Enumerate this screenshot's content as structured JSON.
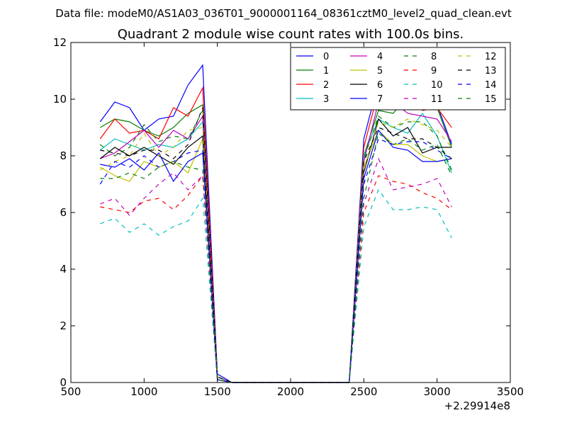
{
  "suptitle": "Data file: modeM0/AS1A03_036T01_9000001164_08361cztM0_level2_quad_clean.evt",
  "chart_data": {
    "type": "line",
    "title": "Quadrant 2 module wise count rates with 100.0s bins.",
    "xlabel": "",
    "ylabel": "",
    "x_offset_label": "+2.29914e8",
    "xlim": [
      500,
      3500
    ],
    "ylim": [
      0,
      12
    ],
    "xticks": [
      500,
      1000,
      1500,
      2000,
      2500,
      3000,
      3500
    ],
    "yticks": [
      0,
      2,
      4,
      6,
      8,
      10,
      12
    ],
    "grid": false,
    "legend_position": "top-right",
    "legend_columns": 4,
    "x": [
      700,
      800,
      900,
      1000,
      1100,
      1200,
      1300,
      1400,
      1500,
      1600,
      1700,
      1800,
      1900,
      2000,
      2100,
      2200,
      2300,
      2400,
      2500,
      2600,
      2700,
      2800,
      2900,
      3000,
      3100
    ],
    "series": [
      {
        "name": "0",
        "color": "#0000ff",
        "dash": "solid",
        "values": [
          9.2,
          9.9,
          9.7,
          8.9,
          9.3,
          9.4,
          10.5,
          11.2,
          0.3,
          0,
          0,
          0,
          0,
          0,
          0,
          0,
          0,
          0,
          8.6,
          10.6,
          10.4,
          10.3,
          10.0,
          9.8,
          8.4
        ]
      },
      {
        "name": "1",
        "color": "#008000",
        "dash": "solid",
        "values": [
          9.0,
          9.3,
          9.2,
          8.9,
          8.7,
          9.0,
          9.5,
          9.8,
          0.2,
          0,
          0,
          0,
          0,
          0,
          0,
          0,
          0,
          0,
          8.0,
          9.6,
          9.5,
          10.1,
          10.0,
          9.7,
          8.3
        ]
      },
      {
        "name": "2",
        "color": "#ff0000",
        "dash": "solid",
        "values": [
          8.6,
          9.3,
          8.8,
          8.9,
          8.6,
          9.7,
          9.4,
          10.4,
          0.2,
          0,
          0,
          0,
          0,
          0,
          0,
          0,
          0,
          0,
          8.3,
          10.3,
          10.2,
          10.2,
          9.6,
          9.7,
          9.0
        ]
      },
      {
        "name": "3",
        "color": "#00bfbf",
        "dash": "solid",
        "values": [
          8.2,
          8.6,
          8.4,
          8.2,
          8.4,
          8.3,
          8.6,
          9.2,
          0.2,
          0,
          0,
          0,
          0,
          0,
          0,
          0,
          0,
          0,
          8.0,
          9.3,
          9.0,
          8.8,
          9.5,
          8.7,
          7.4
        ]
      },
      {
        "name": "4",
        "color": "#bf00bf",
        "dash": "solid",
        "values": [
          7.9,
          8.1,
          8.5,
          8.9,
          8.3,
          8.9,
          8.6,
          9.4,
          0.2,
          0,
          0,
          0,
          0,
          0,
          0,
          0,
          0,
          0,
          7.8,
          9.9,
          9.9,
          9.5,
          9.4,
          9.3,
          8.5
        ]
      },
      {
        "name": "5",
        "color": "#bfbf00",
        "dash": "solid",
        "values": [
          7.6,
          7.3,
          7.1,
          7.8,
          7.6,
          7.8,
          7.4,
          8.6,
          0.1,
          0,
          0,
          0,
          0,
          0,
          0,
          0,
          0,
          0,
          7.6,
          8.9,
          8.4,
          8.4,
          8.0,
          7.8,
          7.9
        ]
      },
      {
        "name": "6",
        "color": "#000000",
        "dash": "solid",
        "values": [
          7.9,
          8.3,
          8.0,
          8.3,
          8.0,
          7.7,
          8.3,
          8.7,
          0.1,
          0,
          0,
          0,
          0,
          0,
          0,
          0,
          0,
          0,
          7.4,
          9.3,
          8.7,
          9.0,
          8.1,
          8.3,
          8.3
        ]
      },
      {
        "name": "7",
        "color": "#0000ff",
        "dash": "solid",
        "values": [
          7.7,
          7.6,
          7.9,
          7.5,
          8.1,
          7.1,
          7.8,
          8.1,
          0.1,
          0,
          0,
          0,
          0,
          0,
          0,
          0,
          0,
          0,
          7.2,
          8.9,
          8.3,
          8.2,
          7.8,
          7.8,
          7.9
        ]
      },
      {
        "name": "8",
        "color": "#008000",
        "dash": "dashed",
        "values": [
          8.4,
          8.0,
          8.3,
          9.1,
          8.5,
          8.7,
          8.6,
          9.6,
          0.2,
          0,
          0,
          0,
          0,
          0,
          0,
          0,
          0,
          0,
          7.9,
          9.4,
          9.0,
          9.2,
          9.2,
          8.7,
          7.5
        ]
      },
      {
        "name": "9",
        "color": "#ff0000",
        "dash": "dashed",
        "values": [
          6.2,
          6.1,
          6.0,
          6.4,
          6.5,
          6.1,
          6.6,
          7.3,
          0.1,
          0,
          0,
          0,
          0,
          0,
          0,
          0,
          0,
          0,
          6.0,
          7.3,
          7.1,
          7.0,
          6.7,
          6.5,
          6.1
        ]
      },
      {
        "name": "10",
        "color": "#00bfbf",
        "dash": "dashed",
        "values": [
          5.6,
          5.8,
          5.3,
          5.6,
          5.2,
          5.5,
          5.7,
          6.5,
          0.1,
          0,
          0,
          0,
          0,
          0,
          0,
          0,
          0,
          0,
          5.5,
          6.8,
          6.1,
          6.1,
          6.2,
          6.1,
          5.1
        ]
      },
      {
        "name": "11",
        "color": "#bf00bf",
        "dash": "dashed",
        "values": [
          6.3,
          6.5,
          5.9,
          6.5,
          7.0,
          7.4,
          6.8,
          7.3,
          0.1,
          0,
          0,
          0,
          0,
          0,
          0,
          0,
          0,
          0,
          6.3,
          7.9,
          6.8,
          6.9,
          7.0,
          7.2,
          6.2
        ]
      },
      {
        "name": "12",
        "color": "#bfbf00",
        "dash": "dashed",
        "values": [
          7.5,
          7.8,
          8.0,
          8.8,
          8.0,
          8.3,
          8.9,
          9.0,
          0.2,
          0,
          0,
          0,
          0,
          0,
          0,
          0,
          0,
          0,
          7.5,
          9.2,
          9.0,
          9.3,
          9.1,
          8.9,
          8.3
        ]
      },
      {
        "name": "13",
        "color": "#000000",
        "dash": "dashed",
        "values": [
          8.2,
          8.1,
          8.0,
          8.2,
          8.2,
          7.9,
          8.4,
          9.7,
          0.2,
          0,
          0,
          0,
          0,
          0,
          0,
          0,
          0,
          0,
          7.8,
          9.0,
          8.8,
          8.6,
          8.6,
          8.3,
          7.9
        ]
      },
      {
        "name": "14",
        "color": "#0000ff",
        "dash": "dashed",
        "values": [
          7.0,
          7.8,
          7.6,
          8.0,
          7.6,
          7.8,
          8.1,
          8.2,
          0.1,
          0,
          0,
          0,
          0,
          0,
          0,
          0,
          0,
          0,
          7.0,
          8.6,
          8.4,
          8.5,
          8.5,
          8.2,
          7.9
        ]
      },
      {
        "name": "15",
        "color": "#008000",
        "dash": "dashed",
        "values": [
          7.2,
          7.2,
          7.4,
          7.2,
          7.6,
          7.8,
          7.6,
          7.5,
          0.1,
          0,
          0,
          0,
          0,
          0,
          0,
          0,
          0,
          0,
          6.5,
          8.8,
          8.4,
          8.6,
          8.2,
          8.4,
          7.3
        ]
      }
    ]
  }
}
